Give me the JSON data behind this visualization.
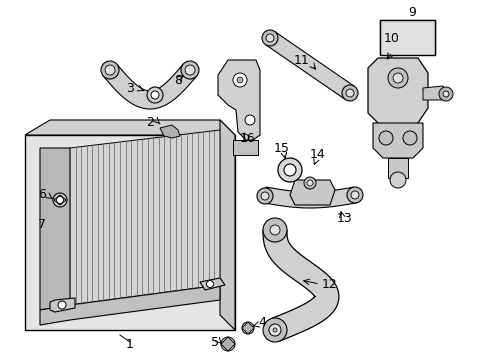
{
  "figsize": [
    4.89,
    3.6
  ],
  "dpi": 100,
  "bg_color": "#ffffff",
  "lc": "#000000",
  "gray_light": "#d8d8d8",
  "gray_mid": "#b8b8b8",
  "gray_dark": "#888888",
  "gray_fill": "#e8e8e8",
  "hatch_fill": "#c0c0c0",
  "xlim": [
    0,
    489
  ],
  "ylim": [
    0,
    360
  ]
}
